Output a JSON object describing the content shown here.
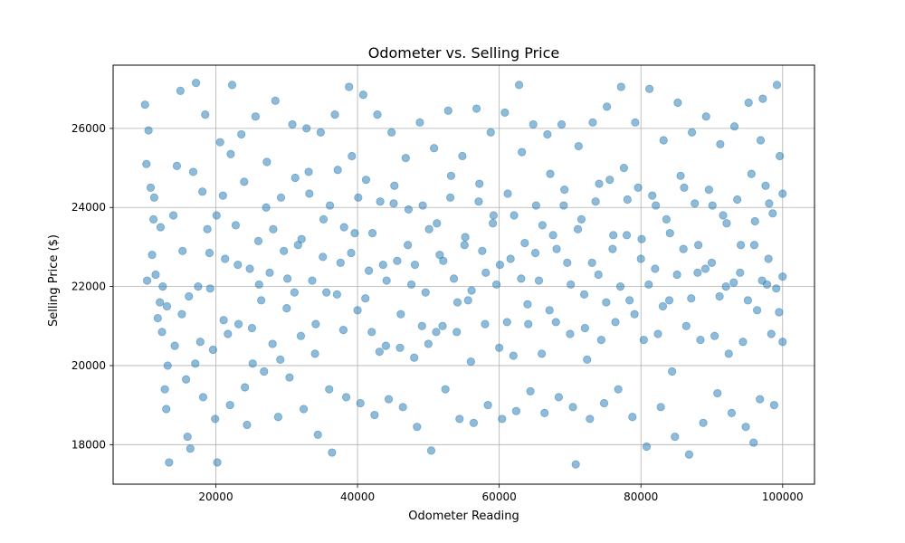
{
  "chart_data": {
    "type": "scatter",
    "title": "Odometer vs. Selling Price",
    "xlabel": "Odometer Reading",
    "ylabel": "Selling Price ($)",
    "xlim": [
      5500,
      104500
    ],
    "ylim": [
      17000,
      27600
    ],
    "xticks": [
      20000,
      40000,
      60000,
      80000,
      100000
    ],
    "yticks": [
      18000,
      20000,
      22000,
      24000,
      26000
    ],
    "grid": true,
    "marker_color": "#1f77b4",
    "marker_alpha": 0.5,
    "points": [
      [
        10000,
        26600
      ],
      [
        10500,
        25950
      ],
      [
        10800,
        24500
      ],
      [
        11200,
        23700
      ],
      [
        11500,
        22300
      ],
      [
        12100,
        21600
      ],
      [
        12400,
        20850
      ],
      [
        12800,
        19400
      ],
      [
        13000,
        18900
      ],
      [
        13400,
        17550
      ],
      [
        10200,
        25100
      ],
      [
        11000,
        22800
      ],
      [
        11800,
        21200
      ],
      [
        12500,
        22000
      ],
      [
        13200,
        20000
      ],
      [
        14000,
        23800
      ],
      [
        14500,
        25050
      ],
      [
        15000,
        26950
      ],
      [
        15200,
        21300
      ],
      [
        15800,
        19650
      ],
      [
        16000,
        18200
      ],
      [
        16400,
        17900
      ],
      [
        16800,
        24900
      ],
      [
        17200,
        27150
      ],
      [
        17500,
        22000
      ],
      [
        17800,
        20600
      ],
      [
        18200,
        19200
      ],
      [
        18500,
        26350
      ],
      [
        18800,
        23450
      ],
      [
        19200,
        21950
      ],
      [
        19600,
        20400
      ],
      [
        19900,
        18650
      ],
      [
        20200,
        17550
      ],
      [
        20600,
        25650
      ],
      [
        21000,
        24300
      ],
      [
        21300,
        22700
      ],
      [
        21700,
        20800
      ],
      [
        22000,
        19000
      ],
      [
        22300,
        27100
      ],
      [
        22800,
        23550
      ],
      [
        23200,
        21050
      ],
      [
        23600,
        25850
      ],
      [
        24000,
        24650
      ],
      [
        24400,
        18500
      ],
      [
        24800,
        22450
      ],
      [
        25200,
        20050
      ],
      [
        25600,
        26300
      ],
      [
        26000,
        23150
      ],
      [
        26400,
        21650
      ],
      [
        26800,
        19850
      ],
      [
        27200,
        25150
      ],
      [
        27600,
        22350
      ],
      [
        28000,
        20550
      ],
      [
        28400,
        26700
      ],
      [
        28800,
        18700
      ],
      [
        29200,
        24250
      ],
      [
        29600,
        22900
      ],
      [
        30000,
        21450
      ],
      [
        30400,
        19700
      ],
      [
        30800,
        26100
      ],
      [
        31200,
        24750
      ],
      [
        31600,
        23050
      ],
      [
        32000,
        20750
      ],
      [
        32400,
        18900
      ],
      [
        32800,
        26000
      ],
      [
        33200,
        24350
      ],
      [
        33600,
        22150
      ],
      [
        34000,
        20300
      ],
      [
        34400,
        18250
      ],
      [
        34800,
        25900
      ],
      [
        35200,
        23700
      ],
      [
        35600,
        21850
      ],
      [
        36000,
        19400
      ],
      [
        36400,
        17800
      ],
      [
        36800,
        26350
      ],
      [
        37200,
        24950
      ],
      [
        37600,
        22600
      ],
      [
        38000,
        20900
      ],
      [
        38400,
        19200
      ],
      [
        38800,
        27050
      ],
      [
        39200,
        25300
      ],
      [
        39600,
        23350
      ],
      [
        40000,
        21400
      ],
      [
        40400,
        19050
      ],
      [
        40800,
        26850
      ],
      [
        41200,
        24700
      ],
      [
        41600,
        22400
      ],
      [
        42000,
        20850
      ],
      [
        42400,
        18750
      ],
      [
        42800,
        26350
      ],
      [
        43200,
        24150
      ],
      [
        43600,
        22550
      ],
      [
        44000,
        20500
      ],
      [
        44400,
        19150
      ],
      [
        44800,
        25900
      ],
      [
        45200,
        24550
      ],
      [
        45600,
        22650
      ],
      [
        46000,
        20450
      ],
      [
        46400,
        18950
      ],
      [
        46800,
        25250
      ],
      [
        47200,
        23950
      ],
      [
        47600,
        22050
      ],
      [
        48000,
        20200
      ],
      [
        48400,
        18450
      ],
      [
        48800,
        26150
      ],
      [
        49200,
        24050
      ],
      [
        49600,
        21850
      ],
      [
        50000,
        20550
      ],
      [
        50400,
        17850
      ],
      [
        50800,
        25500
      ],
      [
        51200,
        23600
      ],
      [
        51600,
        22800
      ],
      [
        52000,
        21000
      ],
      [
        52400,
        19400
      ],
      [
        52800,
        26450
      ],
      [
        53200,
        24800
      ],
      [
        53600,
        22200
      ],
      [
        54000,
        20850
      ],
      [
        54400,
        18650
      ],
      [
        54800,
        25300
      ],
      [
        55200,
        23250
      ],
      [
        55600,
        21650
      ],
      [
        56000,
        20100
      ],
      [
        56400,
        18550
      ],
      [
        56800,
        26500
      ],
      [
        57200,
        24600
      ],
      [
        57600,
        22900
      ],
      [
        58000,
        21050
      ],
      [
        58400,
        19000
      ],
      [
        58800,
        25900
      ],
      [
        59200,
        23800
      ],
      [
        59600,
        22050
      ],
      [
        60000,
        20450
      ],
      [
        60400,
        18650
      ],
      [
        60800,
        26400
      ],
      [
        61200,
        24350
      ],
      [
        61600,
        22700
      ],
      [
        62000,
        20250
      ],
      [
        62400,
        18850
      ],
      [
        62800,
        27100
      ],
      [
        63200,
        25400
      ],
      [
        63600,
        23100
      ],
      [
        64000,
        21550
      ],
      [
        64400,
        19350
      ],
      [
        64800,
        26100
      ],
      [
        65200,
        24050
      ],
      [
        65600,
        22150
      ],
      [
        66000,
        20300
      ],
      [
        66400,
        18800
      ],
      [
        66800,
        25850
      ],
      [
        67200,
        24850
      ],
      [
        67600,
        23300
      ],
      [
        68000,
        21100
      ],
      [
        68400,
        19200
      ],
      [
        68800,
        26100
      ],
      [
        69200,
        24450
      ],
      [
        69600,
        22600
      ],
      [
        70000,
        20800
      ],
      [
        70400,
        18950
      ],
      [
        70800,
        17500
      ],
      [
        71200,
        25550
      ],
      [
        71600,
        23700
      ],
      [
        72000,
        21800
      ],
      [
        72400,
        20150
      ],
      [
        72800,
        18650
      ],
      [
        73200,
        26150
      ],
      [
        73600,
        24150
      ],
      [
        74000,
        22300
      ],
      [
        74400,
        20650
      ],
      [
        74800,
        19050
      ],
      [
        75200,
        26550
      ],
      [
        75600,
        24700
      ],
      [
        76000,
        22950
      ],
      [
        76400,
        21100
      ],
      [
        76800,
        19400
      ],
      [
        77200,
        27050
      ],
      [
        77600,
        25000
      ],
      [
        78000,
        23300
      ],
      [
        78400,
        21650
      ],
      [
        78800,
        18700
      ],
      [
        79200,
        26150
      ],
      [
        79600,
        24500
      ],
      [
        80000,
        22700
      ],
      [
        80400,
        20650
      ],
      [
        80800,
        17950
      ],
      [
        81200,
        27000
      ],
      [
        81600,
        24300
      ],
      [
        82000,
        22450
      ],
      [
        82400,
        20800
      ],
      [
        82800,
        18950
      ],
      [
        83200,
        25700
      ],
      [
        83600,
        23700
      ],
      [
        84000,
        21650
      ],
      [
        84400,
        19850
      ],
      [
        84800,
        18200
      ],
      [
        85200,
        26650
      ],
      [
        85600,
        24800
      ],
      [
        86000,
        22950
      ],
      [
        86400,
        21000
      ],
      [
        86800,
        17750
      ],
      [
        87200,
        25900
      ],
      [
        87600,
        24100
      ],
      [
        88000,
        22350
      ],
      [
        88400,
        20650
      ],
      [
        88800,
        18550
      ],
      [
        89200,
        26300
      ],
      [
        89600,
        24450
      ],
      [
        90000,
        22600
      ],
      [
        90400,
        20750
      ],
      [
        90800,
        19300
      ],
      [
        91200,
        25600
      ],
      [
        91600,
        23800
      ],
      [
        92000,
        22000
      ],
      [
        92400,
        20300
      ],
      [
        92800,
        18800
      ],
      [
        93200,
        26050
      ],
      [
        93600,
        24200
      ],
      [
        94000,
        22350
      ],
      [
        94400,
        20600
      ],
      [
        94800,
        18450
      ],
      [
        95200,
        26650
      ],
      [
        95600,
        24850
      ],
      [
        96000,
        23050
      ],
      [
        96400,
        21400
      ],
      [
        96800,
        19150
      ],
      [
        97200,
        26750
      ],
      [
        97600,
        24550
      ],
      [
        98000,
        22700
      ],
      [
        98400,
        20800
      ],
      [
        98800,
        19000
      ],
      [
        99200,
        27100
      ],
      [
        99600,
        25300
      ],
      [
        100000,
        24350
      ],
      [
        100000,
        22250
      ],
      [
        100000,
        20600
      ],
      [
        99500,
        21350
      ],
      [
        98600,
        23850
      ],
      [
        97800,
        22050
      ],
      [
        96900,
        25700
      ],
      [
        95900,
        18050
      ],
      [
        10300,
        22150
      ],
      [
        11300,
        24250
      ],
      [
        12200,
        23500
      ],
      [
        13100,
        21500
      ],
      [
        14200,
        20500
      ],
      [
        15300,
        22900
      ],
      [
        16200,
        21750
      ],
      [
        17100,
        20050
      ],
      [
        18100,
        24400
      ],
      [
        19100,
        22850
      ],
      [
        20100,
        23800
      ],
      [
        21100,
        21150
      ],
      [
        22100,
        25350
      ],
      [
        23100,
        22550
      ],
      [
        24100,
        19450
      ],
      [
        25100,
        20950
      ],
      [
        26100,
        22050
      ],
      [
        27100,
        24000
      ],
      [
        28100,
        23450
      ],
      [
        29100,
        20150
      ],
      [
        30100,
        22200
      ],
      [
        31100,
        21850
      ],
      [
        32100,
        23200
      ],
      [
        33100,
        24900
      ],
      [
        34100,
        21050
      ],
      [
        35100,
        22750
      ],
      [
        36100,
        24050
      ],
      [
        37100,
        21800
      ],
      [
        38100,
        23500
      ],
      [
        39100,
        22850
      ],
      [
        40100,
        24250
      ],
      [
        41100,
        21700
      ],
      [
        42100,
        23350
      ],
      [
        43100,
        20350
      ],
      [
        44100,
        22150
      ],
      [
        45100,
        24100
      ],
      [
        46100,
        21300
      ],
      [
        47100,
        23050
      ],
      [
        48100,
        22550
      ],
      [
        49100,
        21000
      ],
      [
        50100,
        23450
      ],
      [
        51100,
        20850
      ],
      [
        52100,
        22650
      ],
      [
        53100,
        24250
      ],
      [
        54100,
        21600
      ],
      [
        55100,
        23050
      ],
      [
        56100,
        21900
      ],
      [
        57100,
        24150
      ],
      [
        58100,
        22350
      ],
      [
        59100,
        23600
      ],
      [
        60100,
        22550
      ],
      [
        61100,
        21100
      ],
      [
        62100,
        23800
      ],
      [
        63100,
        22200
      ],
      [
        64100,
        21050
      ],
      [
        65100,
        22850
      ],
      [
        66100,
        23550
      ],
      [
        67100,
        21400
      ],
      [
        68100,
        22950
      ],
      [
        69100,
        24050
      ],
      [
        70100,
        22050
      ],
      [
        71100,
        23450
      ],
      [
        72100,
        20950
      ],
      [
        73100,
        22600
      ],
      [
        74100,
        24600
      ],
      [
        75100,
        21600
      ],
      [
        76100,
        23300
      ],
      [
        77100,
        22000
      ],
      [
        78100,
        24200
      ],
      [
        79100,
        21300
      ],
      [
        80100,
        23200
      ],
      [
        81100,
        22050
      ],
      [
        82100,
        24050
      ],
      [
        83100,
        21500
      ],
      [
        84100,
        23350
      ],
      [
        85100,
        22300
      ],
      [
        86100,
        24500
      ],
      [
        87100,
        21700
      ],
      [
        88100,
        23050
      ],
      [
        89100,
        22450
      ],
      [
        90100,
        24050
      ],
      [
        91100,
        21750
      ],
      [
        92100,
        23600
      ],
      [
        93100,
        22100
      ],
      [
        94100,
        23050
      ],
      [
        95100,
        21650
      ],
      [
        96100,
        23650
      ],
      [
        97100,
        22150
      ],
      [
        98100,
        24100
      ],
      [
        99100,
        21950
      ]
    ]
  }
}
